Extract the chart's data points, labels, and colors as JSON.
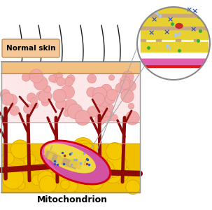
{
  "title": "Mitochondrion",
  "label_normal_skin": "Normal skin",
  "bg_color": "#ffffff",
  "skin_tan_color": "#f2c080",
  "dermis_bg": "#fce8e8",
  "cell_color": "#f0a8a8",
  "cell_edge": "#d88080",
  "white_layer": "#ffffff",
  "fat_bg": "#f0c000",
  "fat_color": "#f5c800",
  "fat_dark": "#d0a000",
  "mito_outer_color": "#e060b0",
  "mito_shadow": "#c04090",
  "mito_red_border": "#cc0010",
  "mito_inner_yellow": "#f0d840",
  "mito_cristae_tan": "#c8a870",
  "mito_cristae_yellow": "#e8c840",
  "blood_color": "#8b0a0a",
  "hair_color": "#1a1a1a",
  "inset_yellow": "#e8d030",
  "inset_tan": "#c8a878",
  "inset_red_strip": "#dd1818",
  "inset_pink_strip": "#e060b0",
  "inset_blue_x": "#2855cc",
  "inset_dot_light": "#a8c8f0",
  "inset_dot_green": "#30b030",
  "inset_dot_red": "#cc2020",
  "connector_color": "#aaaaaa",
  "border_color": "#888888",
  "label_bg": "#f5c898",
  "label_border": "#c09060"
}
